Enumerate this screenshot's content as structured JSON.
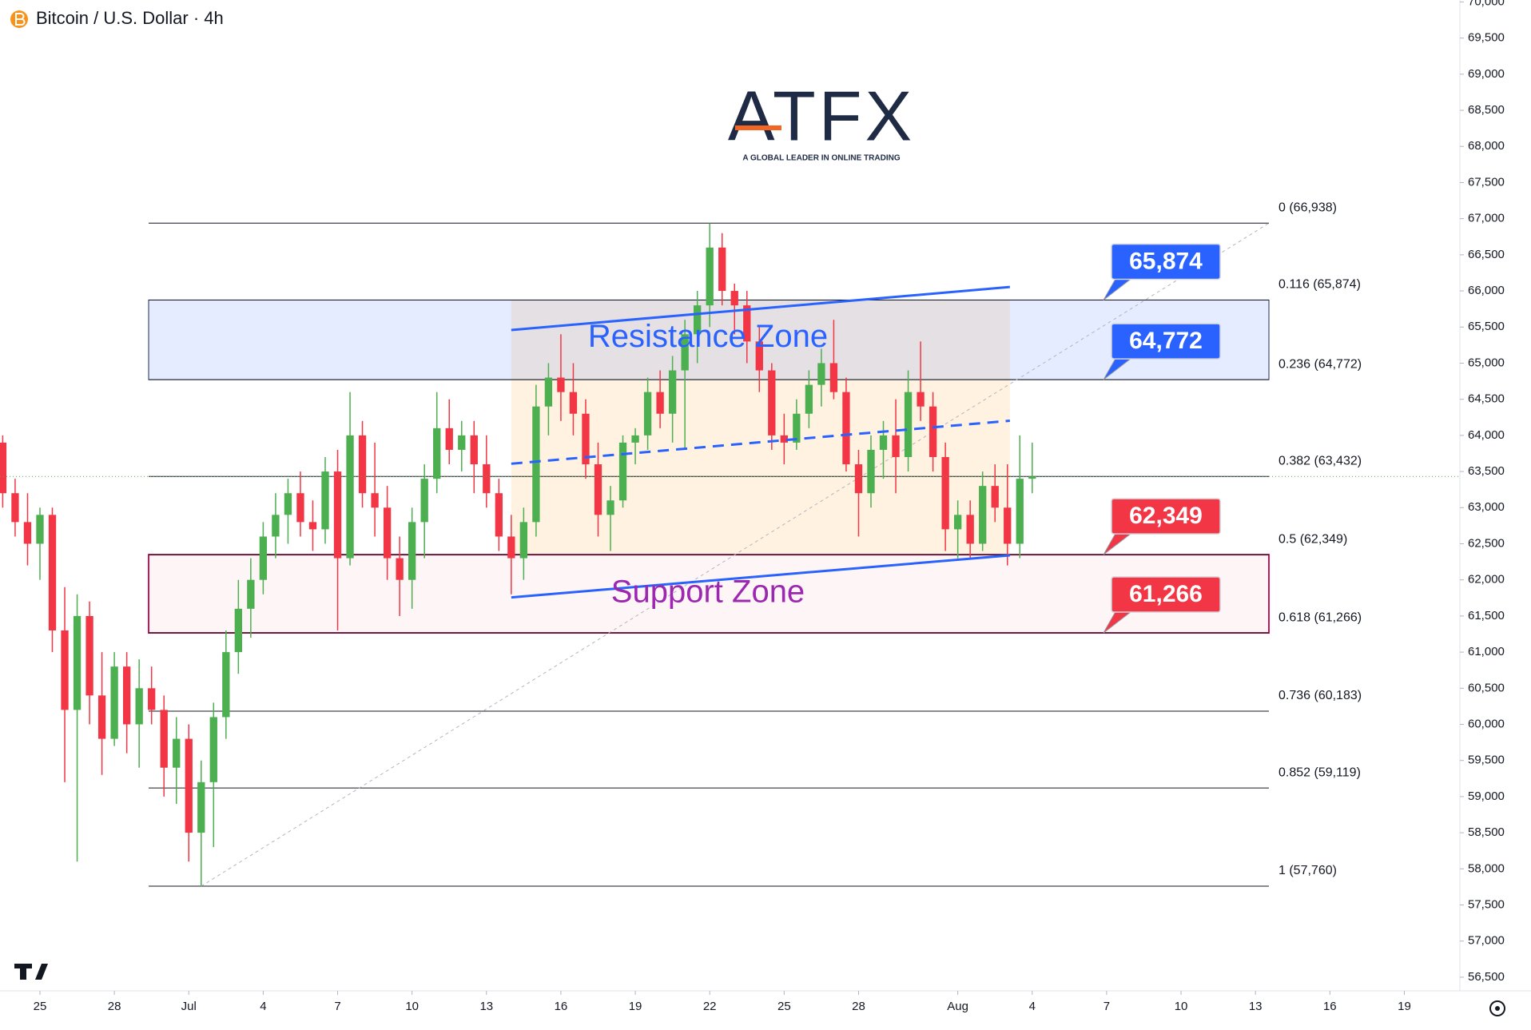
{
  "chart_data": {
    "type": "candlestick",
    "title": "Bitcoin / U.S. Dollar · 4h",
    "logo": {
      "name": "ATFX",
      "tagline": "A GLOBAL LEADER IN ONLINE TRADING"
    },
    "up_color": "#4caf50",
    "down_color": "#f23645",
    "xlim": [
      -1.61,
      57.24
    ],
    "ylim": [
      56311,
      70027
    ],
    "xticks": [
      {
        "value": 0,
        "label": "25"
      },
      {
        "value": 3,
        "label": "28"
      },
      {
        "value": 6,
        "label": "Jul"
      },
      {
        "value": 9,
        "label": "4"
      },
      {
        "value": 12,
        "label": "7"
      },
      {
        "value": 15,
        "label": "10"
      },
      {
        "value": 18,
        "label": "13"
      },
      {
        "value": 21,
        "label": "16"
      },
      {
        "value": 24,
        "label": "19"
      },
      {
        "value": 27,
        "label": "22"
      },
      {
        "value": 30,
        "label": "25"
      },
      {
        "value": 33,
        "label": "28"
      },
      {
        "value": 37,
        "label": "Aug"
      },
      {
        "value": 40,
        "label": "4"
      },
      {
        "value": 43,
        "label": "7"
      },
      {
        "value": 46,
        "label": "10"
      },
      {
        "value": 49,
        "label": "13"
      },
      {
        "value": 52,
        "label": "16"
      },
      {
        "value": 55,
        "label": "19"
      }
    ],
    "yticks": [
      {
        "value": 56500,
        "label": "56,500"
      },
      {
        "value": 57000,
        "label": "57,000"
      },
      {
        "value": 57500,
        "label": "57,500"
      },
      {
        "value": 58000,
        "label": "58,000"
      },
      {
        "value": 58500,
        "label": "58,500"
      },
      {
        "value": 59000,
        "label": "59,000"
      },
      {
        "value": 59500,
        "label": "59,500"
      },
      {
        "value": 60000,
        "label": "60,000"
      },
      {
        "value": 60500,
        "label": "60,500"
      },
      {
        "value": 61000,
        "label": "61,000"
      },
      {
        "value": 61500,
        "label": "61,500"
      },
      {
        "value": 62000,
        "label": "62,000"
      },
      {
        "value": 62500,
        "label": "62,500"
      },
      {
        "value": 63000,
        "label": "63,000"
      },
      {
        "value": 63500,
        "label": "63,500"
      },
      {
        "value": 64000,
        "label": "64,000"
      },
      {
        "value": 64500,
        "label": "64,500"
      },
      {
        "value": 65000,
        "label": "65,000"
      },
      {
        "value": 65500,
        "label": "65,500"
      },
      {
        "value": 66000,
        "label": "66,000"
      },
      {
        "value": 66500,
        "label": "66,500"
      },
      {
        "value": 67000,
        "label": "67,000"
      },
      {
        "value": 67500,
        "label": "67,500"
      },
      {
        "value": 68000,
        "label": "68,000"
      },
      {
        "value": 68500,
        "label": "68,500"
      },
      {
        "value": 69000,
        "label": "69,000"
      },
      {
        "value": 69500,
        "label": "69,500"
      },
      {
        "value": 70000,
        "label": "70,000"
      }
    ],
    "fib": [
      {
        "value": 66938,
        "label": "0 (66,938)"
      },
      {
        "value": 65874,
        "label": "0.116 (65,874)"
      },
      {
        "value": 64772,
        "label": "0.236 (64,772)"
      },
      {
        "value": 63432,
        "label": "0.382 (63,432)"
      },
      {
        "value": 62349,
        "label": "0.5 (62,349)"
      },
      {
        "value": 61266,
        "label": "0.618 (61,266)"
      },
      {
        "value": 60183,
        "label": "0.736 (60,183)"
      },
      {
        "value": 59119,
        "label": "0.852 (59,119)"
      },
      {
        "value": 57760,
        "label": "1 (57,760)"
      }
    ],
    "price_labels": [
      {
        "value": 65874,
        "label": "65,874",
        "color": "#2962ff"
      },
      {
        "value": 64772,
        "label": "64,772",
        "color": "#2962ff"
      },
      {
        "value": 62349,
        "label": "62,349",
        "color": "#f23645"
      },
      {
        "value": 61266,
        "label": "61,266",
        "color": "#f23645"
      }
    ],
    "zones": [
      {
        "label": "Resistance Zone",
        "color": "#2962ff"
      },
      {
        "label": "Support Zone",
        "color": "#9c27b0"
      }
    ],
    "trendlines": [
      {
        "points": [
          [
            19,
            65459
          ],
          [
            39.1,
            66054
          ]
        ],
        "color": "#2962ff",
        "dashed": false
      },
      {
        "points": [
          [
            19,
            63608
          ],
          [
            39.1,
            64203
          ]
        ],
        "color": "#2962ff",
        "dashed": true
      },
      {
        "points": [
          [
            19,
            61757
          ],
          [
            39.1,
            62340
          ]
        ],
        "color": "#2962ff",
        "dashed": false
      }
    ],
    "candles": [
      [
        -1.5,
        63900,
        64000,
        63000,
        63200
      ],
      [
        -1,
        63200,
        63400,
        62600,
        62800
      ],
      [
        -0.5,
        62800,
        63200,
        62200,
        62500
      ],
      [
        0,
        62500,
        63000,
        62000,
        62900
      ],
      [
        0.5,
        62900,
        63000,
        61000,
        61300
      ],
      [
        1,
        61300,
        61900,
        59200,
        60200
      ],
      [
        1.5,
        60200,
        61800,
        58100,
        61500
      ],
      [
        2,
        61500,
        61700,
        60000,
        60400
      ],
      [
        2.5,
        60400,
        61000,
        59300,
        59800
      ],
      [
        3,
        59800,
        61000,
        59700,
        60800
      ],
      [
        3.5,
        60800,
        61000,
        59600,
        60000
      ],
      [
        4,
        60000,
        60900,
        59400,
        60500
      ],
      [
        4.5,
        60500,
        60800,
        60000,
        60200
      ],
      [
        5,
        60200,
        60400,
        59000,
        59400
      ],
      [
        5.5,
        59400,
        60100,
        58900,
        59800
      ],
      [
        6,
        59800,
        60000,
        58100,
        58500
      ],
      [
        6.5,
        58500,
        59500,
        57760,
        59200
      ],
      [
        7,
        59200,
        60300,
        58300,
        60100
      ],
      [
        7.5,
        60100,
        61300,
        59800,
        61000
      ],
      [
        8,
        61000,
        62000,
        60700,
        61600
      ],
      [
        8.5,
        61600,
        62300,
        61200,
        62000
      ],
      [
        9,
        62000,
        62800,
        61800,
        62600
      ],
      [
        9.5,
        62600,
        63200,
        62300,
        62900
      ],
      [
        10,
        62900,
        63400,
        62500,
        63200
      ],
      [
        10.5,
        63200,
        63500,
        62600,
        62800
      ],
      [
        11,
        62800,
        63100,
        62400,
        62700
      ],
      [
        11.5,
        62700,
        63700,
        62500,
        63500
      ],
      [
        12,
        63500,
        63800,
        61300,
        62300
      ],
      [
        12.5,
        62300,
        64600,
        62200,
        64000
      ],
      [
        13,
        64000,
        64200,
        63000,
        63200
      ],
      [
        13.5,
        63200,
        63900,
        62600,
        63000
      ],
      [
        14,
        63000,
        63300,
        62000,
        62300
      ],
      [
        14.5,
        62300,
        62600,
        61500,
        62000
      ],
      [
        15,
        62000,
        63000,
        61600,
        62800
      ],
      [
        15.5,
        62800,
        63600,
        62300,
        63400
      ],
      [
        16,
        63400,
        64600,
        63200,
        64100
      ],
      [
        16.5,
        64100,
        64500,
        63600,
        63800
      ],
      [
        17,
        63800,
        64200,
        63500,
        64000
      ],
      [
        17.5,
        64000,
        64200,
        63200,
        63600
      ],
      [
        18,
        63600,
        64000,
        63000,
        63200
      ],
      [
        18.5,
        63200,
        63400,
        62400,
        62600
      ],
      [
        19,
        62600,
        62900,
        61800,
        62300
      ],
      [
        19.5,
        62300,
        63000,
        62000,
        62800
      ],
      [
        20,
        62800,
        64700,
        62600,
        64400
      ],
      [
        20.5,
        64400,
        65000,
        64000,
        64800
      ],
      [
        21,
        64800,
        65400,
        64200,
        64600
      ],
      [
        21.5,
        64600,
        65000,
        64000,
        64300
      ],
      [
        22,
        64300,
        64500,
        63400,
        63600
      ],
      [
        22.5,
        63600,
        63900,
        62600,
        62900
      ],
      [
        23,
        62900,
        63300,
        62400,
        63100
      ],
      [
        23.5,
        63100,
        64000,
        63000,
        63900
      ],
      [
        24,
        63900,
        64100,
        63600,
        64000
      ],
      [
        24.5,
        64000,
        64800,
        63800,
        64600
      ],
      [
        25,
        64600,
        64900,
        64100,
        64300
      ],
      [
        25.5,
        64300,
        65100,
        63900,
        64900
      ],
      [
        26,
        64900,
        65600,
        63800,
        65400
      ],
      [
        26.5,
        65400,
        66000,
        65000,
        65800
      ],
      [
        27,
        65800,
        66938,
        65500,
        66600
      ],
      [
        27.5,
        66600,
        66800,
        65800,
        66000
      ],
      [
        28,
        66000,
        66100,
        65400,
        65800
      ],
      [
        28.5,
        65800,
        66000,
        65000,
        65300
      ],
      [
        29,
        65300,
        65500,
        64600,
        64900
      ],
      [
        29.5,
        64900,
        65000,
        63800,
        64000
      ],
      [
        30,
        64000,
        64300,
        63600,
        63900
      ],
      [
        30.5,
        63900,
        64500,
        63800,
        64300
      ],
      [
        31,
        64300,
        64900,
        64100,
        64700
      ],
      [
        31.5,
        64700,
        65200,
        64400,
        65000
      ],
      [
        32,
        65000,
        65600,
        64500,
        64600
      ],
      [
        32.5,
        64600,
        64800,
        63500,
        63600
      ],
      [
        33,
        63600,
        63800,
        62600,
        63200
      ],
      [
        33.5,
        63200,
        64000,
        63000,
        63800
      ],
      [
        34,
        63800,
        64200,
        63400,
        64000
      ],
      [
        34.5,
        64000,
        64500,
        63200,
        63700
      ],
      [
        35,
        63700,
        64900,
        63500,
        64600
      ],
      [
        35.5,
        64600,
        65300,
        64200,
        64400
      ],
      [
        36,
        64400,
        64600,
        63500,
        63700
      ],
      [
        36.5,
        63700,
        63900,
        62400,
        62700
      ],
      [
        37,
        62700,
        63100,
        62300,
        62900
      ],
      [
        37.5,
        62900,
        63100,
        62300,
        62500
      ],
      [
        38,
        62500,
        63500,
        62400,
        63300
      ],
      [
        38.5,
        63300,
        63600,
        62800,
        63000
      ],
      [
        39,
        63000,
        63600,
        62200,
        62500
      ],
      [
        39.5,
        62500,
        64000,
        62300,
        63400
      ],
      [
        40,
        63400,
        63900,
        63200,
        63432
      ]
    ]
  }
}
